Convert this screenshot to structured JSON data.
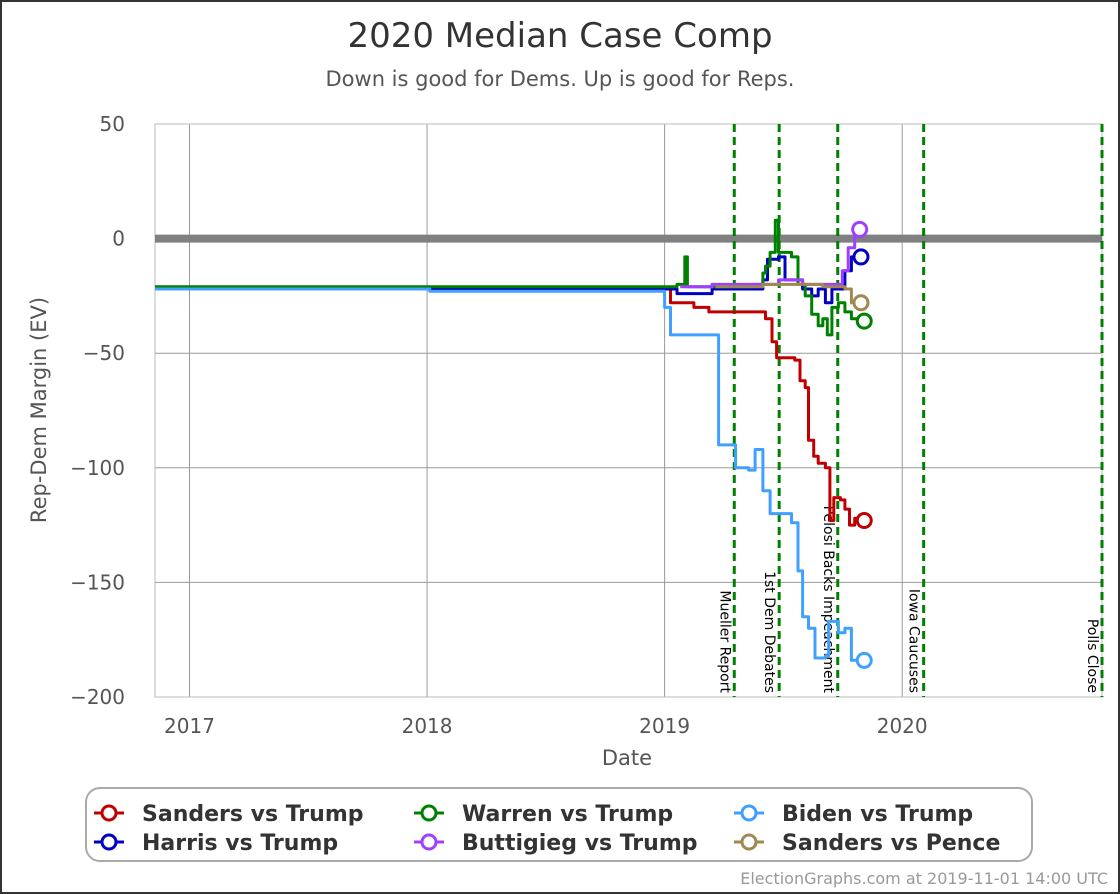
{
  "chart_data": {
    "type": "line",
    "title": "2020 Median Case Comp",
    "subtitle": "Down is good for Dems. Up is good for Reps.",
    "xlabel": "Date",
    "ylabel": "Rep-Dem Margin (EV)",
    "xlim": [
      "2016-11-09",
      "2020-11-03"
    ],
    "ylim": [
      -200,
      50
    ],
    "yticks": [
      50,
      0,
      -50,
      -100,
      -150,
      -200
    ],
    "ytick_labels": [
      "50",
      "0",
      "−50",
      "−100",
      "−150",
      "−200"
    ],
    "xticks": [
      {
        "date": "2017-01-01",
        "label": "2017"
      },
      {
        "date": "2018-01-01",
        "label": "2018"
      },
      {
        "date": "2019-01-01",
        "label": "2019"
      },
      {
        "date": "2020-01-01",
        "label": "2020"
      }
    ],
    "grid": true,
    "reference_line": {
      "y": 0,
      "color": "#808080"
    },
    "events": [
      {
        "date": "2019-04-18",
        "label": "Mueller Report"
      },
      {
        "date": "2019-06-26",
        "label": "1st Dem Debates"
      },
      {
        "date": "2019-09-24",
        "label": "Pelosi Backs Impeachment"
      },
      {
        "date": "2020-02-03",
        "label": "Iowa Caucuses"
      },
      {
        "date": "2020-11-03",
        "label": "Polls Close"
      }
    ],
    "legend": {
      "placement": "bottom"
    },
    "series": [
      {
        "name": "Sanders vs Trump",
        "color": "#c00000",
        "points": [
          [
            "2016-11-09",
            -22
          ],
          [
            "2018-12-20",
            -22
          ],
          [
            "2019-01-10",
            -28
          ],
          [
            "2019-02-15",
            -30
          ],
          [
            "2019-03-10",
            -32
          ],
          [
            "2019-05-15",
            -32
          ],
          [
            "2019-06-05",
            -35
          ],
          [
            "2019-06-15",
            -45
          ],
          [
            "2019-06-22",
            -52
          ],
          [
            "2019-07-20",
            -53
          ],
          [
            "2019-07-28",
            -62
          ],
          [
            "2019-08-05",
            -65
          ],
          [
            "2019-08-10",
            -88
          ],
          [
            "2019-08-18",
            -95
          ],
          [
            "2019-08-25",
            -98
          ],
          [
            "2019-09-05",
            -100
          ],
          [
            "2019-09-12",
            -123
          ],
          [
            "2019-09-18",
            -113
          ],
          [
            "2019-09-28",
            -114
          ],
          [
            "2019-10-05",
            -118
          ],
          [
            "2019-10-12",
            -125
          ],
          [
            "2019-10-20",
            -122
          ],
          [
            "2019-10-27",
            -123
          ]
        ]
      },
      {
        "name": "Harris vs Trump",
        "color": "#0000c0",
        "points": [
          [
            "2016-11-09",
            -22
          ],
          [
            "2018-12-01",
            -22
          ],
          [
            "2019-01-20",
            -24
          ],
          [
            "2019-03-15",
            -22
          ],
          [
            "2019-05-01",
            -22
          ],
          [
            "2019-06-01",
            -18
          ],
          [
            "2019-06-08",
            -9
          ],
          [
            "2019-06-25",
            -8
          ],
          [
            "2019-07-05",
            -18
          ],
          [
            "2019-07-20",
            -18
          ],
          [
            "2019-08-01",
            -22
          ],
          [
            "2019-08-15",
            -25
          ],
          [
            "2019-08-25",
            -22
          ],
          [
            "2019-09-05",
            -28
          ],
          [
            "2019-09-15",
            -22
          ],
          [
            "2019-09-25",
            -22
          ],
          [
            "2019-10-05",
            -14
          ],
          [
            "2019-10-15",
            -8
          ],
          [
            "2019-10-22",
            -8
          ]
        ]
      },
      {
        "name": "Warren vs Trump",
        "color": "#008000",
        "points": [
          [
            "2016-11-09",
            -21
          ],
          [
            "2018-12-01",
            -21
          ],
          [
            "2019-01-20",
            -20
          ],
          [
            "2019-02-01",
            -8
          ],
          [
            "2019-02-05",
            -21
          ],
          [
            "2019-03-15",
            -21
          ],
          [
            "2019-05-15",
            -20
          ],
          [
            "2019-06-01",
            -15
          ],
          [
            "2019-06-05",
            -12
          ],
          [
            "2019-06-12",
            -6
          ],
          [
            "2019-06-20",
            8
          ],
          [
            "2019-06-25",
            -6
          ],
          [
            "2019-07-15",
            -8
          ],
          [
            "2019-07-25",
            -20
          ],
          [
            "2019-08-05",
            -25
          ],
          [
            "2019-08-15",
            -33
          ],
          [
            "2019-08-25",
            -38
          ],
          [
            "2019-09-01",
            -35
          ],
          [
            "2019-09-08",
            -42
          ],
          [
            "2019-09-15",
            -30
          ],
          [
            "2019-09-25",
            -28
          ],
          [
            "2019-10-05",
            -32
          ],
          [
            "2019-10-15",
            -35
          ],
          [
            "2019-10-27",
            -36
          ]
        ]
      },
      {
        "name": "Buttigieg vs Trump",
        "color": "#a040ff",
        "points": [
          [
            "2019-01-25",
            -21
          ],
          [
            "2019-03-15",
            -20
          ],
          [
            "2019-05-15",
            -20
          ],
          [
            "2019-06-25",
            -18
          ],
          [
            "2019-08-01",
            -20
          ],
          [
            "2019-09-15",
            -20
          ],
          [
            "2019-10-01",
            -14
          ],
          [
            "2019-10-10",
            -4
          ],
          [
            "2019-10-20",
            4
          ]
        ]
      },
      {
        "name": "Biden vs Trump",
        "color": "#3fa0ff",
        "points": [
          [
            "2016-11-09",
            -22
          ],
          [
            "2018-01-01",
            -22
          ],
          [
            "2018-01-05",
            -23
          ],
          [
            "2018-12-01",
            -23
          ],
          [
            "2019-01-01",
            -30
          ],
          [
            "2019-01-10",
            -42
          ],
          [
            "2019-02-15",
            -42
          ],
          [
            "2019-03-15",
            -42
          ],
          [
            "2019-03-25",
            -90
          ],
          [
            "2019-04-10",
            -90
          ],
          [
            "2019-04-20",
            -100
          ],
          [
            "2019-05-10",
            -101
          ],
          [
            "2019-05-20",
            -92
          ],
          [
            "2019-06-01",
            -110
          ],
          [
            "2019-06-12",
            -120
          ],
          [
            "2019-07-01",
            -120
          ],
          [
            "2019-07-15",
            -124
          ],
          [
            "2019-07-25",
            -145
          ],
          [
            "2019-08-01",
            -165
          ],
          [
            "2019-08-10",
            -170
          ],
          [
            "2019-08-20",
            -183
          ],
          [
            "2019-09-05",
            -182
          ],
          [
            "2019-09-10",
            -167
          ],
          [
            "2019-09-25",
            -172
          ],
          [
            "2019-10-05",
            -170
          ],
          [
            "2019-10-15",
            -184
          ],
          [
            "2019-10-27",
            -184
          ]
        ]
      },
      {
        "name": "Sanders vs Pence",
        "color": "#a08850",
        "points": [
          [
            "2019-03-20",
            -21
          ],
          [
            "2019-06-01",
            -20
          ],
          [
            "2019-08-01",
            -20
          ],
          [
            "2019-09-01",
            -21
          ],
          [
            "2019-10-05",
            -22
          ],
          [
            "2019-10-15",
            -28
          ],
          [
            "2019-10-22",
            -28
          ]
        ]
      }
    ]
  },
  "footer": {
    "credit": "ElectionGraphs.com at 2019-11-01 14:00 UTC"
  }
}
